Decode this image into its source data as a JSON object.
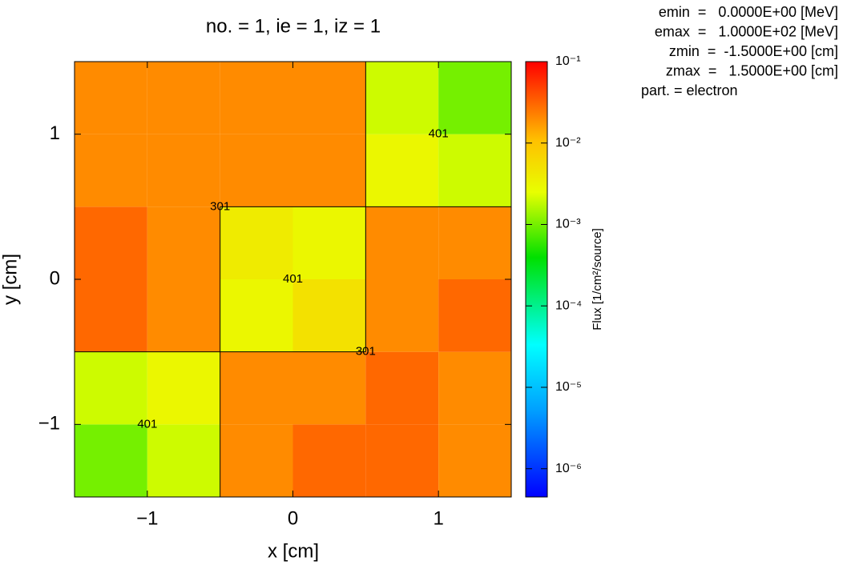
{
  "chart_data": {
    "type": "heatmap",
    "title": "no. =  1,  ie =  1,  iz =  1",
    "x_label": "x [cm]",
    "y_label": "y [cm]",
    "colorbar_label": "Flux [1/cm²/source]",
    "xlim": [
      -1.5,
      1.5
    ],
    "ylim": [
      -1.5,
      1.5
    ],
    "xticks": [
      {
        "value": -1,
        "label": "−1"
      },
      0,
      1
    ],
    "yticks": [
      {
        "value": -1,
        "label": "−1"
      },
      0,
      1
    ],
    "xbins": [
      -1.5,
      -1,
      -0.5,
      0,
      0.5,
      1,
      1.5
    ],
    "ybins": [
      -1.5,
      -1,
      -0.5,
      0,
      0.5,
      1,
      1.5
    ],
    "z": [
      [
        0.001,
        0.002,
        0.02,
        0.03,
        0.03,
        0.02
      ],
      [
        0.002,
        0.003,
        0.02,
        0.02,
        0.03,
        0.02
      ],
      [
        0.03,
        0.02,
        0.003,
        0.005,
        0.02,
        0.03
      ],
      [
        0.03,
        0.02,
        0.004,
        0.003,
        0.02,
        0.02
      ],
      [
        0.02,
        0.02,
        0.02,
        0.02,
        0.003,
        0.002
      ],
      [
        0.02,
        0.02,
        0.02,
        0.02,
        0.002,
        0.001
      ]
    ],
    "zlim": [
      4.5e-07,
      0.1
    ],
    "zscale": "log",
    "zticks": [
      {
        "value": 0.1,
        "label": "10⁻¹"
      },
      {
        "value": 0.01,
        "label": "10⁻²"
      },
      {
        "value": 0.001,
        "label": "10⁻³"
      },
      {
        "value": 0.0001,
        "label": "10⁻⁴"
      },
      {
        "value": 1e-05,
        "label": "10⁻⁵"
      },
      {
        "value": 1e-06,
        "label": "10⁻⁶"
      }
    ],
    "boundaries": [
      [
        0.5,
        1.5,
        0.5,
        -0.5
      ],
      [
        -0.5,
        0.5,
        1.5,
        0.5
      ],
      [
        -0.5,
        0.5,
        -0.5,
        -1.5
      ],
      [
        -1.5,
        -0.5,
        0.5,
        -0.5
      ]
    ],
    "annotations": [
      {
        "text": "401",
        "x": 1.0,
        "y": 1.0
      },
      {
        "text": "301",
        "x": -0.5,
        "y": 0.5
      },
      {
        "text": "401",
        "x": 0.0,
        "y": 0.0
      },
      {
        "text": "301",
        "x": 0.5,
        "y": -0.5
      },
      {
        "text": "401",
        "x": -1.0,
        "y": -1.0
      }
    ],
    "info": [
      "emin  =   0.0000E+00 [MeV]",
      "emax  =   1.0000E+02 [MeV]",
      "zmin  =  -1.5000E+00 [cm]",
      "zmax  =   1.5000E+00 [cm]",
      "part. = electron"
    ]
  }
}
